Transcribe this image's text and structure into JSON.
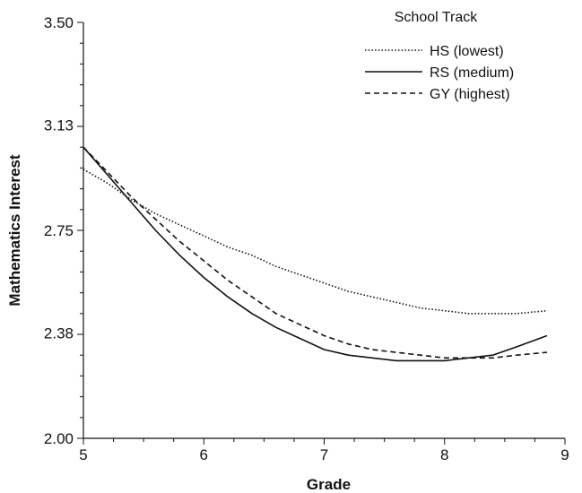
{
  "chart_data": {
    "type": "line",
    "title": "",
    "xlabel": "Grade",
    "ylabel": "Mathematics Interest",
    "xlim": [
      5,
      9
    ],
    "ylim": [
      2.0,
      3.5
    ],
    "x_ticks": [
      5,
      6,
      7,
      8,
      9
    ],
    "x_tick_labels": [
      "5",
      "6",
      "7",
      "8",
      "9"
    ],
    "y_ticks": [
      2.0,
      2.38,
      2.75,
      3.13,
      3.5
    ],
    "y_tick_labels": [
      "2.00",
      "2.38",
      "2.75",
      "3.13",
      "3.50"
    ],
    "grid": false,
    "legend": {
      "title": "School Track",
      "position": "top-right"
    },
    "x": [
      5.0,
      5.2,
      5.4,
      5.6,
      5.8,
      6.0,
      6.2,
      6.4,
      6.6,
      6.8,
      7.0,
      7.2,
      7.4,
      7.6,
      7.8,
      8.0,
      8.2,
      8.4,
      8.6,
      8.85
    ],
    "series": [
      {
        "name": "HS (lowest)",
        "style": "dotted",
        "values": [
          2.97,
          2.92,
          2.86,
          2.81,
          2.77,
          2.73,
          2.69,
          2.66,
          2.62,
          2.59,
          2.56,
          2.53,
          2.51,
          2.49,
          2.47,
          2.46,
          2.45,
          2.45,
          2.45,
          2.46
        ]
      },
      {
        "name": "RS (medium)",
        "style": "solid",
        "values": [
          3.05,
          2.95,
          2.85,
          2.75,
          2.66,
          2.58,
          2.51,
          2.45,
          2.4,
          2.36,
          2.32,
          2.3,
          2.29,
          2.28,
          2.28,
          2.28,
          2.29,
          2.3,
          2.33,
          2.37
        ]
      },
      {
        "name": "GY (highest)",
        "style": "dashed",
        "values": [
          3.05,
          2.96,
          2.87,
          2.79,
          2.71,
          2.64,
          2.57,
          2.51,
          2.45,
          2.41,
          2.37,
          2.34,
          2.32,
          2.31,
          2.3,
          2.29,
          2.29,
          2.29,
          2.3,
          2.31
        ]
      }
    ]
  }
}
